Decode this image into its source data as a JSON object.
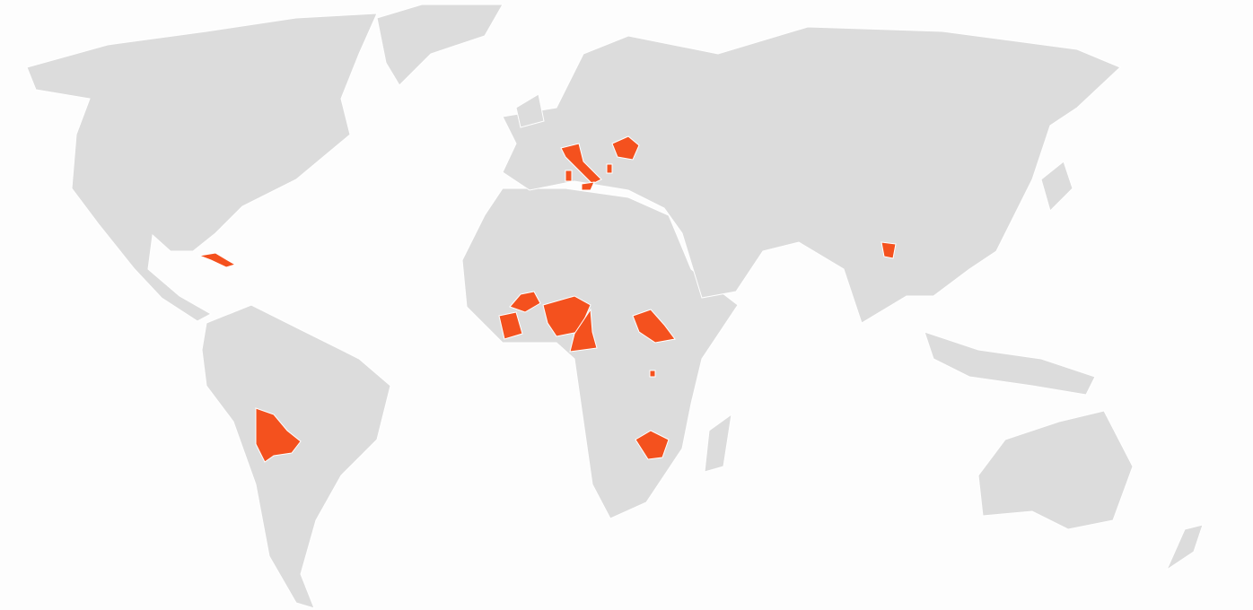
{
  "map": {
    "land_color": "#dcdcdc",
    "highlight_color": "#f4511e",
    "border_color": "#ffffff",
    "background": "#fdfdfd"
  }
}
